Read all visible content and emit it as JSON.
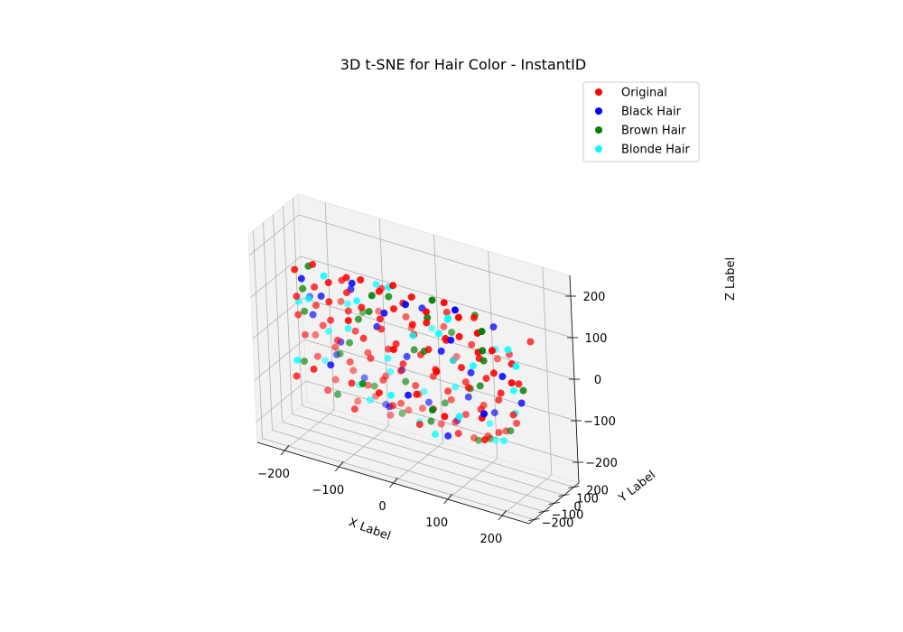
{
  "chart_data": {
    "type": "scatter",
    "projection": "3d",
    "title": "3D t-SNE for Hair Color - InstantID",
    "xlabel": "X Label",
    "ylabel": "Y Label",
    "zlabel": "Z Label",
    "xlim": [
      -250,
      250
    ],
    "ylim": [
      -250,
      250
    ],
    "zlim": [
      -250,
      250
    ],
    "x_ticks": [
      -200,
      -100,
      0,
      100,
      200
    ],
    "y_ticks": [
      -200,
      -100,
      0,
      100,
      200
    ],
    "z_ticks": [
      -200,
      -100,
      0,
      100,
      200
    ],
    "x_tick_labels": [
      "−200",
      "−100",
      "0",
      "100",
      "200"
    ],
    "y_tick_labels": [
      "−200",
      "−100",
      "0",
      "100",
      "200"
    ],
    "z_tick_labels": [
      "−200",
      "−100",
      "0",
      "100",
      "200"
    ],
    "grid": true,
    "legend_position": "top-right",
    "legend": [
      "Original",
      "Black Hair",
      "Brown Hair",
      "Blonde Hair"
    ],
    "series": [
      {
        "name": "Original",
        "color": "#ff0000",
        "points": [
          [
            -180,
            -180,
            180
          ],
          [
            -150,
            -160,
            200
          ],
          [
            -120,
            -170,
            170
          ],
          [
            -90,
            -150,
            190
          ],
          [
            -60,
            -170,
            200
          ],
          [
            -30,
            -150,
            180
          ],
          [
            0,
            -170,
            210
          ],
          [
            30,
            -150,
            190
          ],
          [
            60,
            -170,
            170
          ],
          [
            90,
            -150,
            200
          ],
          [
            120,
            -170,
            180
          ],
          [
            150,
            -150,
            150
          ],
          [
            -190,
            -120,
            100
          ],
          [
            -160,
            -100,
            130
          ],
          [
            -130,
            -120,
            110
          ],
          [
            -100,
            -100,
            140
          ],
          [
            -70,
            -120,
            120
          ],
          [
            -40,
            -100,
            100
          ],
          [
            -10,
            -120,
            140
          ],
          [
            20,
            -100,
            110
          ],
          [
            50,
            -120,
            130
          ],
          [
            80,
            -100,
            100
          ],
          [
            110,
            -120,
            120
          ],
          [
            140,
            -100,
            90
          ],
          [
            170,
            -120,
            110
          ],
          [
            -200,
            -60,
            40
          ],
          [
            -170,
            -40,
            70
          ],
          [
            -140,
            -60,
            50
          ],
          [
            -110,
            -40,
            80
          ],
          [
            -80,
            -60,
            30
          ],
          [
            -50,
            -40,
            60
          ],
          [
            -20,
            -60,
            40
          ],
          [
            10,
            -40,
            70
          ],
          [
            40,
            -60,
            50
          ],
          [
            70,
            -40,
            80
          ],
          [
            100,
            -60,
            30
          ],
          [
            130,
            -40,
            60
          ],
          [
            160,
            -60,
            40
          ],
          [
            190,
            -40,
            70
          ],
          [
            -200,
            0,
            -20
          ],
          [
            -170,
            20,
            10
          ],
          [
            -140,
            0,
            -10
          ],
          [
            -110,
            20,
            20
          ],
          [
            -80,
            0,
            -30
          ],
          [
            -50,
            20,
            0
          ],
          [
            -20,
            0,
            -20
          ],
          [
            10,
            20,
            10
          ],
          [
            40,
            0,
            -10
          ],
          [
            70,
            20,
            20
          ],
          [
            100,
            0,
            -30
          ],
          [
            130,
            20,
            0
          ],
          [
            160,
            0,
            -20
          ],
          [
            190,
            20,
            10
          ],
          [
            -190,
            60,
            -80
          ],
          [
            -160,
            80,
            -50
          ],
          [
            -130,
            60,
            -70
          ],
          [
            -100,
            80,
            -40
          ],
          [
            -70,
            60,
            -90
          ],
          [
            -40,
            80,
            -60
          ],
          [
            -10,
            60,
            -80
          ],
          [
            20,
            80,
            -50
          ],
          [
            50,
            60,
            -70
          ],
          [
            80,
            80,
            -40
          ],
          [
            110,
            60,
            -90
          ],
          [
            140,
            80,
            -60
          ],
          [
            170,
            60,
            -80
          ],
          [
            -170,
            120,
            -140
          ],
          [
            -140,
            140,
            -110
          ],
          [
            -110,
            120,
            -130
          ],
          [
            -80,
            140,
            -100
          ],
          [
            -50,
            120,
            -150
          ],
          [
            -20,
            140,
            -120
          ],
          [
            10,
            120,
            -140
          ],
          [
            40,
            140,
            -110
          ],
          [
            70,
            120,
            -130
          ],
          [
            100,
            140,
            -100
          ],
          [
            130,
            120,
            -150
          ],
          [
            160,
            140,
            -120
          ],
          [
            -140,
            170,
            -190
          ],
          [
            -110,
            190,
            -170
          ],
          [
            -80,
            170,
            -200
          ],
          [
            -50,
            190,
            -180
          ],
          [
            -20,
            170,
            -160
          ],
          [
            10,
            190,
            -190
          ],
          [
            40,
            170,
            -170
          ],
          [
            70,
            190,
            -200
          ],
          [
            100,
            170,
            -180
          ],
          [
            130,
            190,
            -160
          ],
          [
            -120,
            -40,
            150
          ],
          [
            -60,
            30,
            140
          ],
          [
            0,
            -80,
            150
          ],
          [
            60,
            30,
            130
          ],
          [
            120,
            -20,
            150
          ],
          [
            -150,
            100,
            60
          ],
          [
            -90,
            150,
            50
          ],
          [
            -30,
            100,
            70
          ],
          [
            30,
            150,
            60
          ],
          [
            90,
            100,
            50
          ],
          [
            150,
            150,
            40
          ],
          [
            -160,
            -140,
            -60
          ],
          [
            -100,
            -90,
            -80
          ],
          [
            -40,
            -140,
            -70
          ],
          [
            20,
            -90,
            -60
          ],
          [
            80,
            -140,
            -80
          ],
          [
            140,
            -90,
            -70
          ],
          [
            -170,
            40,
            -150
          ],
          [
            -110,
            -20,
            -160
          ],
          [
            -50,
            40,
            -140
          ],
          [
            10,
            -20,
            -150
          ],
          [
            70,
            40,
            -160
          ],
          [
            130,
            -20,
            -140
          ],
          [
            -80,
            -200,
            100
          ],
          [
            0,
            -190,
            60
          ],
          [
            80,
            -200,
            40
          ],
          [
            -40,
            200,
            20
          ],
          [
            40,
            210,
            -20
          ],
          [
            120,
            190,
            10
          ],
          [
            -200,
            -100,
            -100
          ],
          [
            200,
            100,
            100
          ],
          [
            -200,
            100,
            -40
          ],
          [
            200,
            -100,
            40
          ]
        ]
      },
      {
        "name": "Black Hair",
        "color": "#0000ff",
        "points": [
          [
            -170,
            -170,
            160
          ],
          [
            -80,
            -150,
            180
          ],
          [
            20,
            -160,
            170
          ],
          [
            110,
            -150,
            190
          ],
          [
            -150,
            -90,
            110
          ],
          [
            -30,
            -110,
            120
          ],
          [
            90,
            -100,
            100
          ],
          [
            -180,
            -20,
            40
          ],
          [
            -60,
            -30,
            60
          ],
          [
            60,
            -40,
            50
          ],
          [
            170,
            -30,
            30
          ],
          [
            -140,
            30,
            -20
          ],
          [
            -20,
            40,
            -10
          ],
          [
            100,
            30,
            0
          ],
          [
            -160,
            90,
            -70
          ],
          [
            -40,
            90,
            -60
          ],
          [
            80,
            100,
            -80
          ],
          [
            -120,
            140,
            -120
          ],
          [
            0,
            130,
            -130
          ],
          [
            120,
            140,
            -110
          ],
          [
            -90,
            180,
            -180
          ],
          [
            40,
            190,
            -170
          ],
          [
            -100,
            -60,
            140
          ],
          [
            20,
            0,
            130
          ],
          [
            140,
            60,
            120
          ],
          [
            -130,
            -130,
            -40
          ],
          [
            10,
            -120,
            -60
          ],
          [
            150,
            -120,
            -50
          ],
          [
            -60,
            60,
            -150
          ],
          [
            60,
            -10,
            -160
          ],
          [
            -200,
            60,
            60
          ],
          [
            190,
            40,
            -40
          ]
        ]
      },
      {
        "name": "Brown Hair",
        "color": "#008000",
        "points": [
          [
            -160,
            -150,
            190
          ],
          [
            -40,
            -170,
            170
          ],
          [
            70,
            -160,
            200
          ],
          [
            160,
            -160,
            160
          ],
          [
            -180,
            -110,
            120
          ],
          [
            -60,
            -100,
            110
          ],
          [
            50,
            -110,
            140
          ],
          [
            150,
            -110,
            100
          ],
          [
            -190,
            -50,
            50
          ],
          [
            -90,
            -50,
            70
          ],
          [
            30,
            -50,
            40
          ],
          [
            140,
            -50,
            60
          ],
          [
            -120,
            10,
            -10
          ],
          [
            0,
            10,
            20
          ],
          [
            120,
            10,
            -20
          ],
          [
            200,
            10,
            0
          ],
          [
            -150,
            70,
            -60
          ],
          [
            -30,
            70,
            -80
          ],
          [
            90,
            70,
            -50
          ],
          [
            -100,
            130,
            -130
          ],
          [
            30,
            130,
            -120
          ],
          [
            150,
            130,
            -140
          ],
          [
            -60,
            180,
            -190
          ],
          [
            80,
            180,
            -200
          ],
          [
            -30,
            -60,
            150
          ],
          [
            110,
            40,
            140
          ],
          [
            -110,
            100,
            50
          ],
          [
            50,
            120,
            60
          ],
          [
            -70,
            -140,
            -60
          ],
          [
            60,
            -150,
            -70
          ],
          [
            -150,
            30,
            -150
          ],
          [
            20,
            40,
            -150
          ],
          [
            100,
            190,
            -190
          ],
          [
            -200,
            -20,
            -80
          ]
        ]
      },
      {
        "name": "Blonde Hair",
        "color": "#00ffff",
        "points": [
          [
            -130,
            -160,
            180
          ],
          [
            -10,
            -160,
            200
          ],
          [
            100,
            -170,
            170
          ],
          [
            -170,
            -110,
            100
          ],
          [
            -80,
            -110,
            130
          ],
          [
            70,
            -110,
            110
          ],
          [
            -200,
            -50,
            70
          ],
          [
            -110,
            -50,
            40
          ],
          [
            10,
            -50,
            70
          ],
          [
            120,
            -50,
            40
          ],
          [
            200,
            -50,
            70
          ],
          [
            -160,
            20,
            0
          ],
          [
            -50,
            10,
            -20
          ],
          [
            70,
            20,
            20
          ],
          [
            180,
            20,
            -10
          ],
          [
            -180,
            80,
            -90
          ],
          [
            -60,
            80,
            -70
          ],
          [
            60,
            80,
            -60
          ],
          [
            170,
            80,
            -80
          ],
          [
            -130,
            140,
            -140
          ],
          [
            -10,
            140,
            -110
          ],
          [
            110,
            140,
            -140
          ],
          [
            -30,
            190,
            -200
          ],
          [
            110,
            190,
            -190
          ],
          [
            -60,
            -20,
            160
          ],
          [
            80,
            -70,
            140
          ],
          [
            -130,
            60,
            70
          ],
          [
            10,
            140,
            50
          ],
          [
            130,
            120,
            50
          ],
          [
            -190,
            -140,
            -50
          ],
          [
            -20,
            -130,
            -70
          ],
          [
            100,
            -100,
            -80
          ],
          [
            -90,
            30,
            -140
          ],
          [
            40,
            -30,
            -160
          ],
          [
            150,
            60,
            -150
          ],
          [
            190,
            -70,
            110
          ]
        ]
      }
    ]
  }
}
